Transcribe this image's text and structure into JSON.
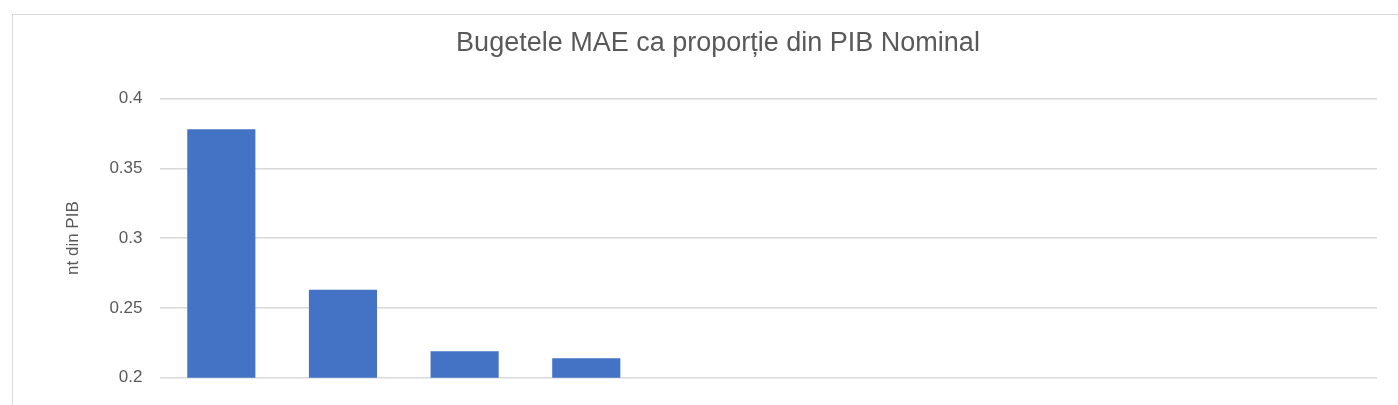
{
  "chart_data": {
    "type": "bar",
    "title": "Bugetele MAE ca proporție din PIB Nominal",
    "ylabel": "nt din PIB",
    "categories": [
      null,
      null,
      null,
      null,
      null,
      null,
      null,
      null,
      null,
      null
    ],
    "values": [
      0.378,
      0.263,
      0.219,
      0.214,
      null,
      null,
      null,
      null,
      null,
      null
    ],
    "color": "#4472c4",
    "ylim": [
      0.2,
      0.4
    ],
    "yticks": [
      0.2,
      0.25,
      0.3,
      0.35,
      0.4
    ],
    "grid": "y",
    "legend": false
  }
}
